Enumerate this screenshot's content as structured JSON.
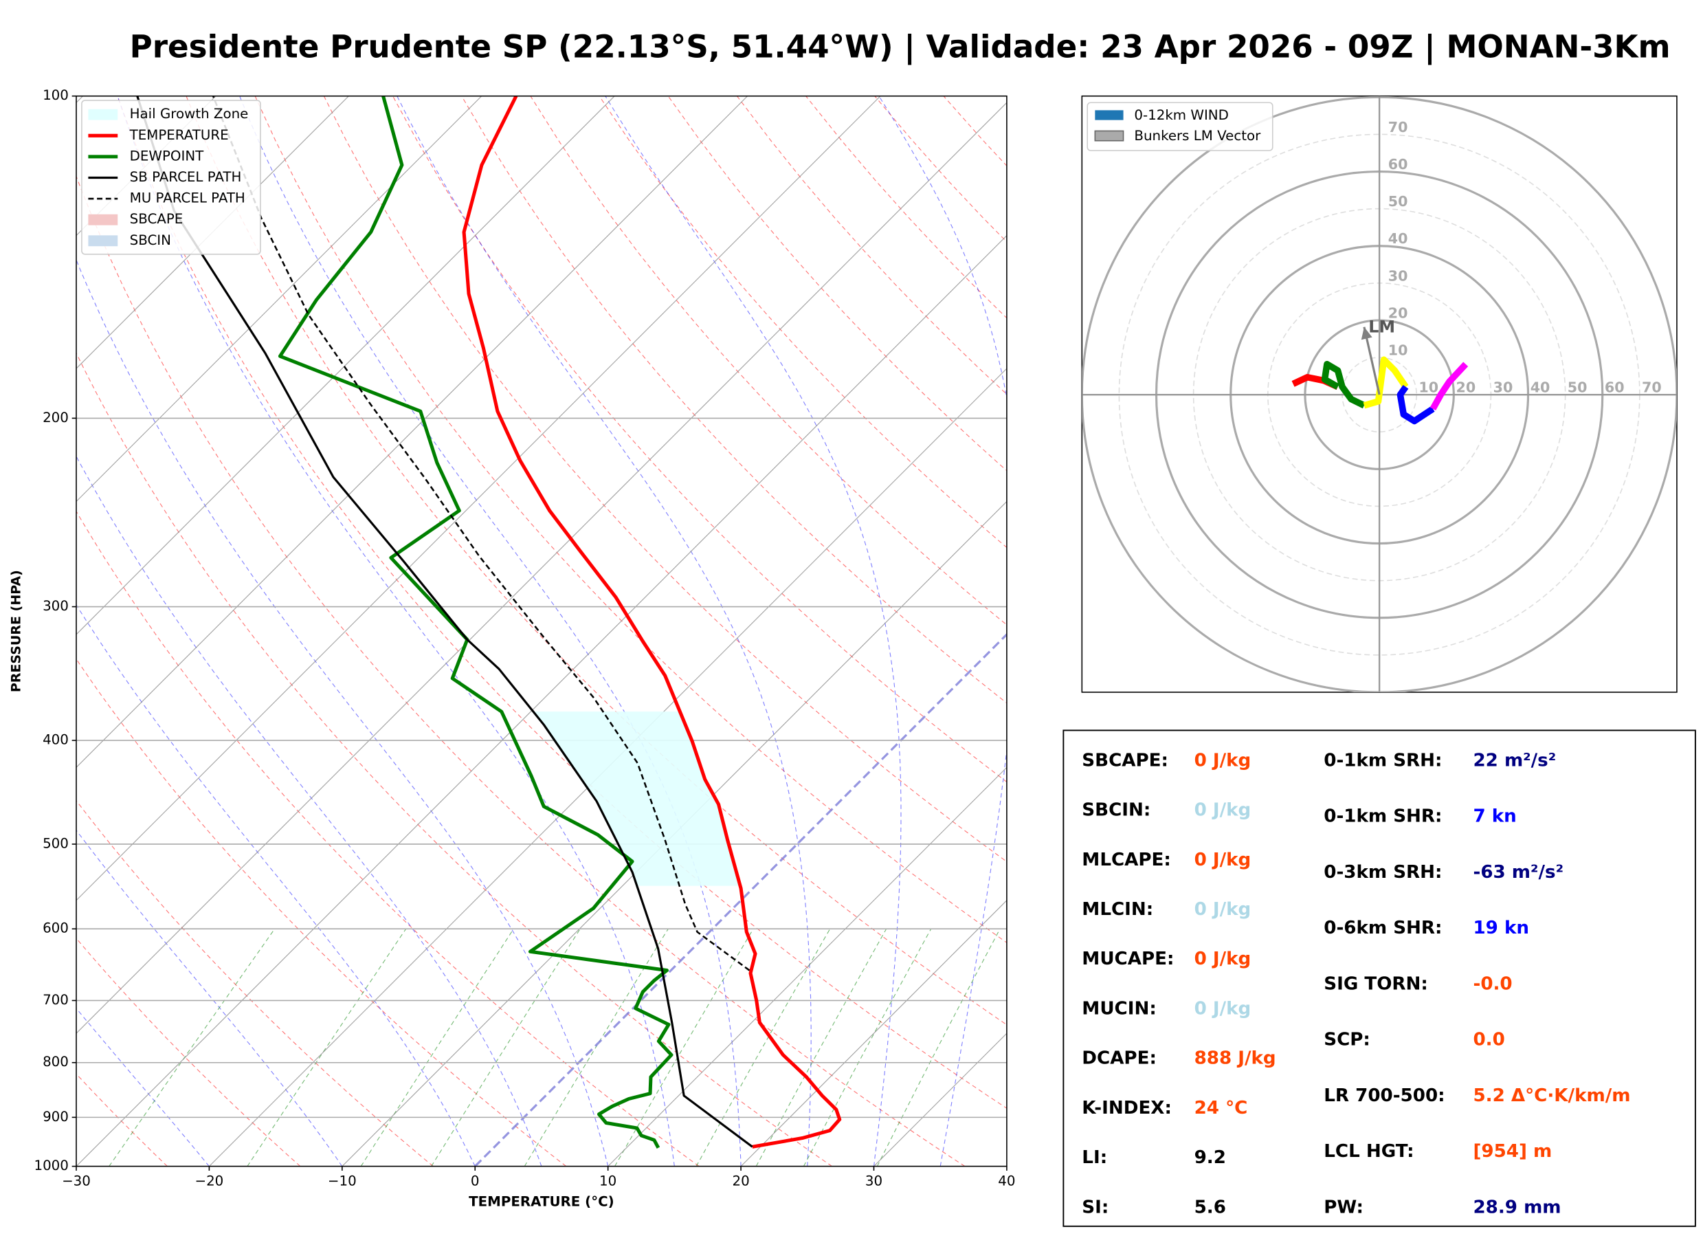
{
  "chart_data": [
    {
      "type": "skewt",
      "title": "Presidente Prudente SP (22.13°S, 51.44°W) | Validade: 23 Apr 2026 - 09Z | MONAN-3Km",
      "xlabel": "TEMPERATURE (°C)",
      "ylabel": "PRESSURE (HPA)",
      "xlim": [
        -30,
        40
      ],
      "ylim": [
        1000,
        100
      ],
      "log_y": true,
      "grid": true,
      "legend": "upper left",
      "xticks": [
        {
          "value": -30,
          "label": "−30"
        },
        {
          "value": -20,
          "label": "−20"
        },
        {
          "value": -10,
          "label": "−10"
        },
        0,
        10,
        20,
        30,
        40
      ],
      "yticks": [
        1000,
        900,
        800,
        700,
        600,
        500,
        400,
        300,
        200,
        100
      ],
      "areas": [
        {
          "name": "Hail Growth Zone",
          "color": "#e0ffff",
          "pressure": [
            547,
            376
          ]
        },
        {
          "name": "SBCAPE",
          "color": "#f4c6c6"
        },
        {
          "name": "SBCIN",
          "color": "#c9dcee"
        }
      ],
      "series": [
        {
          "name": "TEMPERATURE",
          "color": "#ff0000",
          "style": "solid",
          "pressure": [
            959,
            941,
            926,
            904,
            885,
            859,
            825,
            787,
            734,
            700,
            660,
            633,
            604,
            550,
            495,
            459,
            435,
            401,
            348,
            323,
            294,
            266,
            244,
            219,
            197,
            172,
            153,
            134,
            116,
            100
          ],
          "temperature": [
            19.4,
            22.5,
            24.0,
            23.9,
            22.9,
            20.8,
            18.2,
            14.8,
            10.6,
            8.7,
            6.2,
            5.1,
            2.8,
            -0.9,
            -5.6,
            -8.9,
            -11.8,
            -15.6,
            -22.6,
            -26.9,
            -32.2,
            -38.4,
            -43.7,
            -49.7,
            -55.1,
            -60.9,
            -66.1,
            -71.1,
            -74.8,
            -77.4
          ]
        },
        {
          "name": "DEWPOINT",
          "color": "#008000",
          "style": "solid",
          "pressure": [
            961,
            945,
            936,
            921,
            911,
            894,
            879,
            865,
            855,
            825,
            787,
            764,
            737,
            712,
            687,
            671,
            656,
            630,
            574,
            519,
            490,
            461,
            432,
            376,
            350,
            322,
            270,
            244,
            220,
            197,
            175,
            155,
            134,
            116,
            100
          ],
          "temperature": [
            12.4,
            11.5,
            10.2,
            9.3,
            6.6,
            5.4,
            5.8,
            6.5,
            7.7,
            6.5,
            6.4,
            4.4,
            3.9,
            0.2,
            -0.5,
            -0.5,
            -0.3,
            -12.0,
            -10.5,
            -11.1,
            -15.7,
            -21.9,
            -25.1,
            -32.2,
            -38.4,
            -40.2,
            -52.1,
            -50.5,
            -55.8,
            -60.9,
            -75.6,
            -77.1,
            -78.1,
            -80.8,
            -87.4
          ]
        },
        {
          "name": "SB PARCEL PATH",
          "color": "#000000",
          "style": "solid",
          "pressure": [
            959,
            859,
            734,
            626,
            531,
            456,
            387,
            343,
            322,
            272,
            227,
            174,
            154,
            128,
            100
          ],
          "temperature": [
            19.4,
            10.4,
            4.0,
            -2.6,
            -10.3,
            -18.3,
            -28.0,
            -35.6,
            -40.2,
            -50.9,
            -62.5,
            -76.9,
            -83.9,
            -94.5,
            -105.9
          ]
        },
        {
          "name": "MU PARCEL PATH",
          "color": "#000000",
          "style": "dashed",
          "pressure": [
            656,
            604,
            569,
            495,
            420,
            365,
            321,
            269,
            228,
            194,
            160,
            130,
            100
          ],
          "temperature": [
            5.9,
            -0.9,
            -3.9,
            -10.3,
            -18.1,
            -26.3,
            -34.5,
            -45.6,
            -55.4,
            -65.2,
            -76.6,
            -87.4,
            -100.2
          ]
        }
      ]
    },
    {
      "type": "hodograph",
      "rlim": 80,
      "rings": [
        10,
        20,
        30,
        40,
        50,
        60,
        70
      ],
      "legend": "upper left",
      "series": [
        {
          "name": "0-12km WIND",
          "color": "#1f77b4",
          "segments": [
            {
              "color": "#ff0000",
              "u": [
                -23.2,
                -19.4,
                -15.0,
                -11.2
              ],
              "v": [
                2.9,
                4.7,
                3.8,
                2.1
              ]
            },
            {
              "color": "#008000",
              "u": [
                -11.2,
                -14.7,
                -14.1,
                -11.2,
                -10.0,
                -7.6,
                -4.1
              ],
              "v": [
                2.1,
                4.1,
                8.2,
                6.5,
                2.1,
                -1.2,
                -2.9
              ]
            },
            {
              "color": "#ffff00",
              "u": [
                -4.1,
                -0.3,
                1.2,
                4.1,
                7.1
              ],
              "v": [
                -2.9,
                -1.8,
                9.4,
                6.5,
                2.1
              ]
            },
            {
              "color": "#0000ff",
              "u": [
                7.1,
                5.6,
                6.5,
                9.4,
                14.4
              ],
              "v": [
                2.1,
                0,
                -5.3,
                -7.1,
                -3.8
              ]
            },
            {
              "color": "#ff00ff",
              "u": [
                14.4,
                16.5,
                18.8,
                23.2
              ],
              "v": [
                -3.8,
                0,
                3.5,
                8.2
              ]
            }
          ]
        }
      ],
      "vector": {
        "name": "Bunkers LM Vector",
        "label": "LM",
        "color": "#808080",
        "u": -4.1,
        "v": 18.2
      }
    }
  ],
  "indices": {
    "left": [
      {
        "label": "SBCAPE:",
        "value": "0 J/kg",
        "color": "#ff4500"
      },
      {
        "label": "SBCIN:",
        "value": "0 J/kg",
        "color": "#add8e6"
      },
      {
        "label": "MLCAPE:",
        "value": "0 J/kg",
        "color": "#ff4500"
      },
      {
        "label": "MLCIN:",
        "value": "0 J/kg",
        "color": "#add8e6"
      },
      {
        "label": "MUCAPE:",
        "value": "0 J/kg",
        "color": "#ff4500"
      },
      {
        "label": "MUCIN:",
        "value": "0 J/kg",
        "color": "#add8e6"
      },
      {
        "label": "DCAPE:",
        "value": "888 J/kg",
        "color": "#ff4500"
      },
      {
        "label": "K-INDEX:",
        "value": "24 °C",
        "color": "#ff4500"
      },
      {
        "label": "LI:",
        "value": "9.2",
        "color": "#000000"
      },
      {
        "label": "SI:",
        "value": "5.6",
        "color": "#000000"
      }
    ],
    "right": [
      {
        "label": "0-1km SRH:",
        "value": "22 m²/s²",
        "color": "#000080"
      },
      {
        "label": "0-1km SHR:",
        "value": "7 kn",
        "color": "#0000ff"
      },
      {
        "label": "0-3km SRH:",
        "value": "-63 m²/s²",
        "color": "#000080"
      },
      {
        "label": "0-6km SHR:",
        "value": "19 kn",
        "color": "#0000ff"
      },
      {
        "label": "SIG TORN:",
        "value": "-0.0",
        "color": "#ff4500"
      },
      {
        "label": "SCP:",
        "value": "0.0",
        "color": "#ff4500"
      },
      {
        "label": "LR 700-500:",
        "value": "5.2 Δ°C·K/km/m",
        "color": "#ff4500"
      },
      {
        "label": "LCL HGT:",
        "value": "[954] m",
        "color": "#ff4500"
      },
      {
        "label": "PW:",
        "value": "28.9 mm",
        "color": "#000080"
      }
    ]
  }
}
